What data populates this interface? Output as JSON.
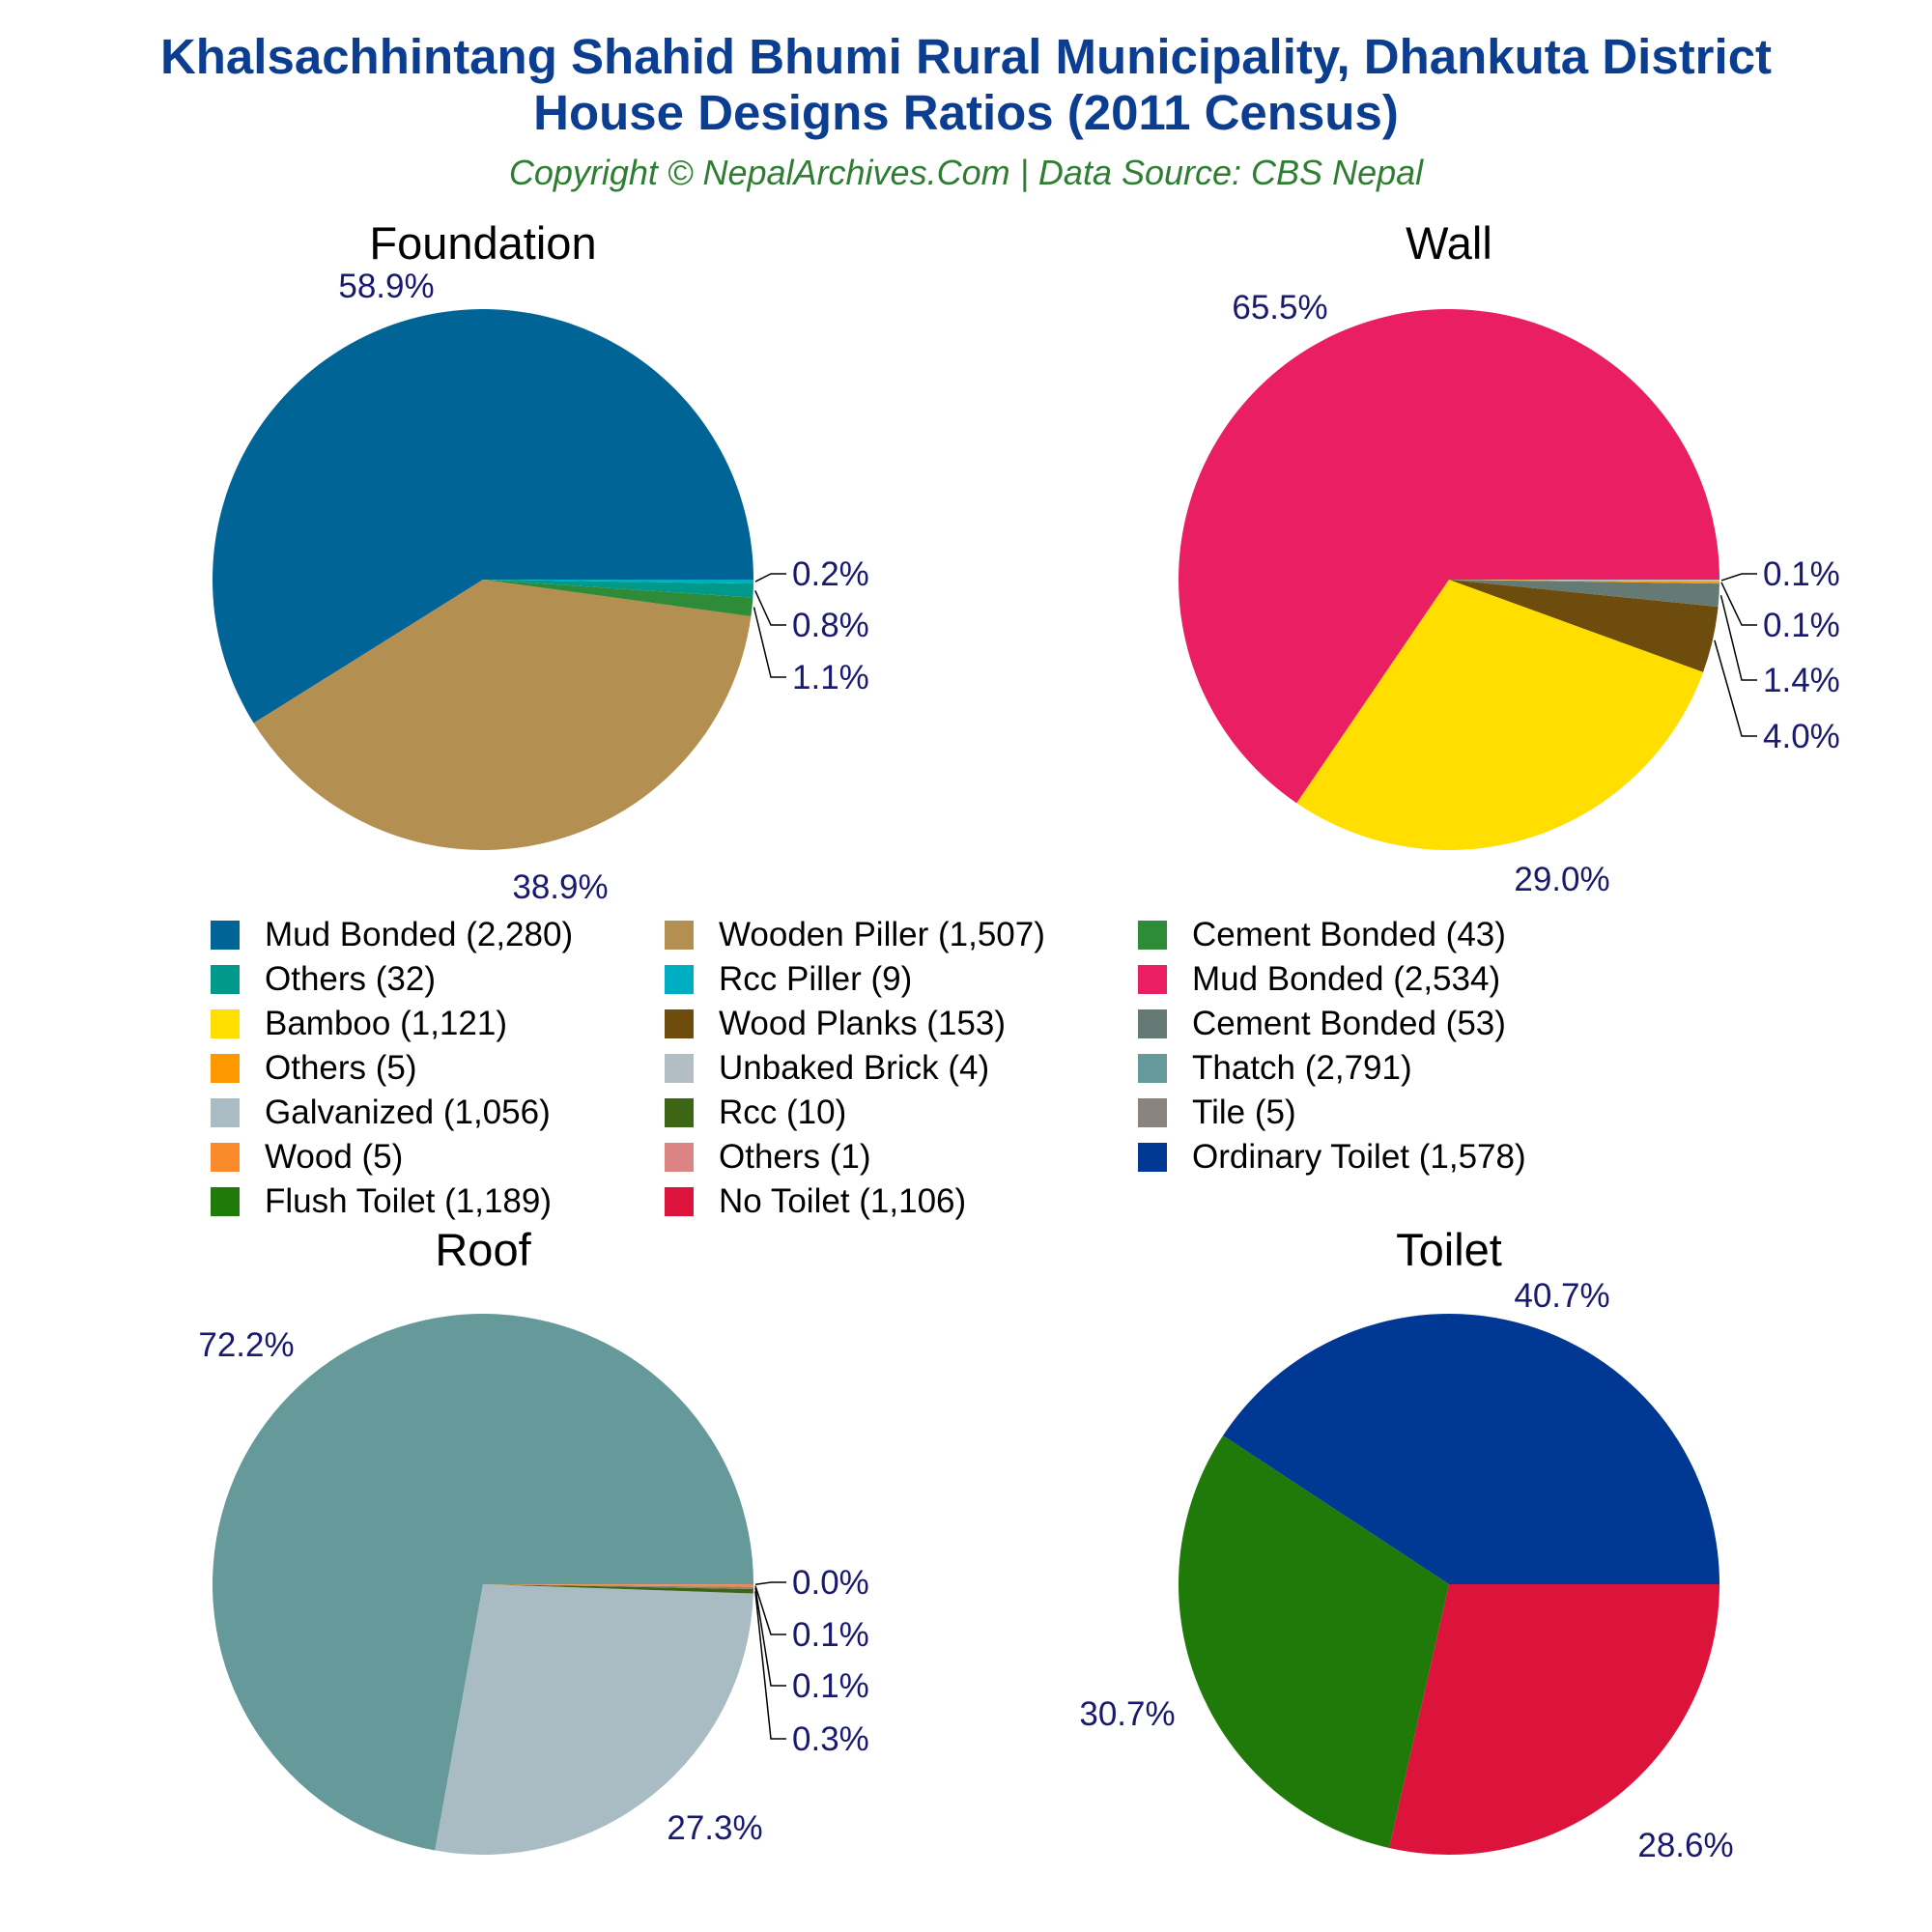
{
  "title_line1": "Khalsachhintang Shahid Bhumi Rural Municipality, Dhankuta District",
  "title_line2": "House Designs Ratios (2011 Census)",
  "subtitle": "Copyright © NepalArchives.Com | Data Source: CBS Nepal",
  "label_color": "#191970",
  "chart_data": [
    {
      "type": "pie",
      "title": "Foundation",
      "slices": [
        {
          "label": "Mud Bonded (2,280)",
          "value": 2280,
          "pct": "58.9%",
          "color": "#006496"
        },
        {
          "label": "Wooden Piller (1,507)",
          "value": 1507,
          "pct": "38.9%",
          "color": "#b38f52"
        },
        {
          "label": "Cement Bonded (43)",
          "value": 43,
          "pct": "1.1%",
          "color": "#2e8b37"
        },
        {
          "label": "Others (32)",
          "value": 32,
          "pct": "0.8%",
          "color": "#00998a"
        },
        {
          "label": "Rcc Piller (9)",
          "value": 9,
          "pct": "0.2%",
          "color": "#00aec4"
        }
      ]
    },
    {
      "type": "pie",
      "title": "Wall",
      "slices": [
        {
          "label": "Mud Bonded (2,534)",
          "value": 2534,
          "pct": "65.5%",
          "color": "#e91e63"
        },
        {
          "label": "Bamboo (1,121)",
          "value": 1121,
          "pct": "29.0%",
          "color": "#ffde00"
        },
        {
          "label": "Wood Planks (153)",
          "value": 153,
          "pct": "4.0%",
          "color": "#6d4c0e"
        },
        {
          "label": "Cement Bonded (53)",
          "value": 53,
          "pct": "1.4%",
          "color": "#657a74"
        },
        {
          "label": "Others (5)",
          "value": 5,
          "pct": "0.1%",
          "color": "#ff9800"
        },
        {
          "label": "Unbaked Brick (4)",
          "value": 4,
          "pct": "0.1%",
          "color": "#b2bec3"
        }
      ]
    },
    {
      "type": "pie",
      "title": "Roof",
      "slices": [
        {
          "label": "Thatch (2,791)",
          "value": 2791,
          "pct": "72.2%",
          "color": "#669999"
        },
        {
          "label": "Galvanized (1,056)",
          "value": 1056,
          "pct": "27.3%",
          "color": "#a9bcc4"
        },
        {
          "label": "Rcc (10)",
          "value": 10,
          "pct": "0.3%",
          "color": "#3d6614"
        },
        {
          "label": "Tile (5)",
          "value": 5,
          "pct": "0.1%",
          "color": "#8a8380"
        },
        {
          "label": "Wood (5)",
          "value": 5,
          "pct": "0.1%",
          "color": "#fa8a2c"
        },
        {
          "label": "Others (1)",
          "value": 1,
          "pct": "0.0%",
          "color": "#dc8383"
        }
      ]
    },
    {
      "type": "pie",
      "title": "Toilet",
      "slices": [
        {
          "label": "Ordinary Toilet (1,578)",
          "value": 1578,
          "pct": "40.7%",
          "color": "#003893"
        },
        {
          "label": "Flush Toilet (1,189)",
          "value": 1189,
          "pct": "30.7%",
          "color": "#1f7a0a"
        },
        {
          "label": "No Toilet (1,106)",
          "value": 1106,
          "pct": "28.6%",
          "color": "#dc143c"
        }
      ]
    }
  ],
  "legend": [
    {
      "label": "Mud Bonded (2,280)",
      "color": "#006496"
    },
    {
      "label": "Wooden Piller (1,507)",
      "color": "#b38f52"
    },
    {
      "label": "Cement Bonded (43)",
      "color": "#2e8b37"
    },
    {
      "label": "Others (32)",
      "color": "#00998a"
    },
    {
      "label": "Rcc Piller (9)",
      "color": "#00aec4"
    },
    {
      "label": "Mud Bonded (2,534)",
      "color": "#e91e63"
    },
    {
      "label": "Bamboo (1,121)",
      "color": "#ffde00"
    },
    {
      "label": "Wood Planks (153)",
      "color": "#6d4c0e"
    },
    {
      "label": "Cement Bonded (53)",
      "color": "#657a74"
    },
    {
      "label": "Others (5)",
      "color": "#ff9800"
    },
    {
      "label": "Unbaked Brick (4)",
      "color": "#b2bec3"
    },
    {
      "label": "Thatch (2,791)",
      "color": "#669999"
    },
    {
      "label": "Galvanized (1,056)",
      "color": "#a9bcc4"
    },
    {
      "label": "Rcc (10)",
      "color": "#3d6614"
    },
    {
      "label": "Tile (5)",
      "color": "#8a8380"
    },
    {
      "label": "Wood (5)",
      "color": "#fa8a2c"
    },
    {
      "label": "Others (1)",
      "color": "#dc8383"
    },
    {
      "label": "Ordinary Toilet (1,578)",
      "color": "#003893"
    },
    {
      "label": "Flush Toilet (1,189)",
      "color": "#1f7a0a"
    },
    {
      "label": "No Toilet (1,106)",
      "color": "#dc143c"
    }
  ]
}
